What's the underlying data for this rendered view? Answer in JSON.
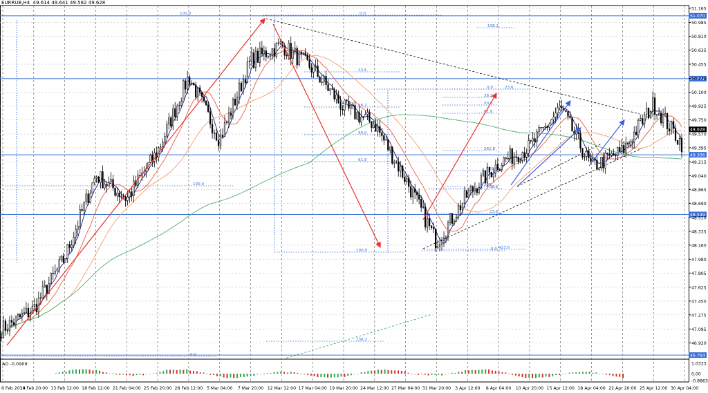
{
  "header": {
    "symbol": "EURRUB,H4",
    "quote": "49.614 49.641 49.582 49.628"
  },
  "oscillator": {
    "label": "AO -0.0909",
    "scale_labels": [
      "1.0333",
      "0.00",
      "-0.8863"
    ]
  },
  "colors": {
    "bull_candle": "#000000",
    "bear_candle": "#000000",
    "ma_fast": "#1c1c8c",
    "ma_medium": "#e0604a",
    "ma_slow": "#f2a070",
    "ma_long": "#4caf6a",
    "level_line": "#3a6fd8",
    "fib_text": "#3a6fd8",
    "trend_red": "#e8322a",
    "trend_blue": "#3a5ee0",
    "ao_up": "#2aa84a",
    "ao_down": "#d2322a",
    "badge_bg": "#3a6fd8",
    "price_badge_bg": "#000000"
  },
  "chart_data": {
    "type": "line",
    "title": "EURRUB,H4",
    "ylim": [
      46.764,
      51.16
    ],
    "yticks": [
      51.165,
      50.985,
      50.81,
      50.635,
      50.455,
      50.275,
      50.1,
      49.925,
      49.75,
      49.57,
      49.395,
      49.215,
      49.04,
      48.865,
      48.69,
      48.51,
      48.335,
      48.16,
      47.98,
      47.805,
      47.625,
      47.45,
      47.275,
      47.095,
      46.92
    ],
    "xticks": [
      "6 Feb 2014",
      "10 Feb 20:00",
      "13 Feb 12:00",
      "18 Feb 12:00",
      "21 Feb 04:00",
      "25 Feb 20:00",
      "28 Feb 12:00",
      "5 Mar 04:00",
      "7 Mar 20:00",
      "12 Mar 12:00",
      "17 Mar 04:00",
      "19 Mar 20:00",
      "24 Mar 12:00",
      "27 Mar 04:00",
      "31 Mar 20:00",
      "3 Apr 12:00",
      "8 Apr 04:00",
      "10 Apr 20:00",
      "15 Apr 12:00",
      "18 Apr 04:00",
      "22 Apr 20:00",
      "25 Apr 12:00",
      "30 Apr 04:00"
    ],
    "horizontal_levels": [
      {
        "value": 51.07,
        "label": "51.070"
      },
      {
        "value": 50.272,
        "label": "50.272"
      },
      {
        "value": 49.306,
        "label": "49.306"
      },
      {
        "value": 48.549,
        "label": "48.549"
      },
      {
        "value": 46.764,
        "label": "46.764"
      }
    ],
    "current_price": {
      "value": 49.628,
      "label": "49.628"
    },
    "fib_labels": [
      "100.0",
      "0.0",
      "138.2",
      "23.6",
      "38.2",
      "50.0",
      "61.8",
      "100.0",
      "0.0",
      "423.6",
      "100.0",
      "0.0",
      "23.6",
      "38.2",
      "50.0",
      "61.8",
      "261.8",
      "200",
      "50.0",
      "38.2",
      "23.6",
      "0.0",
      "138.2"
    ],
    "close_path": [
      {
        "x": "6 Feb 2014",
        "y": 47.1
      },
      {
        "x": "10 Feb 20:00",
        "y": 47.35
      },
      {
        "x": "13 Feb 12:00",
        "y": 48.0
      },
      {
        "x": "18 Feb 12:00",
        "y": 49.05
      },
      {
        "x": "21 Feb 04:00",
        "y": 48.75
      },
      {
        "x": "25 Feb 20:00",
        "y": 49.35
      },
      {
        "x": "28 Feb 12:00",
        "y": 50.3
      },
      {
        "x": "5 Mar 04:00",
        "y": 49.5
      },
      {
        "x": "7 Mar 20:00",
        "y": 50.5
      },
      {
        "x": "12 Mar 12:00",
        "y": 50.7
      },
      {
        "x": "17 Mar 04:00",
        "y": 50.4
      },
      {
        "x": "19 Mar 20:00",
        "y": 49.9
      },
      {
        "x": "24 Mar 12:00",
        "y": 49.7
      },
      {
        "x": "27 Mar 04:00",
        "y": 49.0
      },
      {
        "x": "31 Mar 20:00",
        "y": 48.2
      },
      {
        "x": "3 Apr 12:00",
        "y": 48.8
      },
      {
        "x": "8 Apr 04:00",
        "y": 49.2
      },
      {
        "x": "10 Apr 20:00",
        "y": 49.4
      },
      {
        "x": "15 Apr 12:00",
        "y": 49.9
      },
      {
        "x": "18 Apr 04:00",
        "y": 49.15
      },
      {
        "x": "22 Apr 20:00",
        "y": 49.35
      },
      {
        "x": "25 Apr 12:00",
        "y": 49.95
      },
      {
        "x": "30 Apr 04:00",
        "y": 49.4
      }
    ],
    "grid": true
  }
}
